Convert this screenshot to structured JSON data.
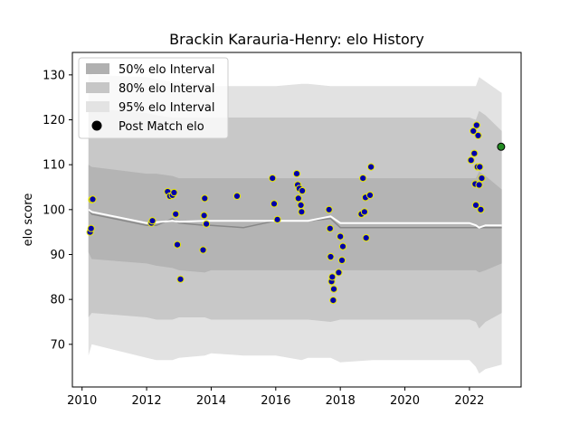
{
  "chart_data": {
    "type": "line",
    "title": "Brackin Karauria-Henry: elo History",
    "xlabel": "",
    "ylabel": "elo score",
    "xlim": [
      2009.7,
      2023.6
    ],
    "ylim": [
      60.5,
      135
    ],
    "xticks": [
      "2010",
      "2012",
      "2014",
      "2016",
      "2018",
      "2020",
      "2022"
    ],
    "yticks": [
      "70",
      "80",
      "90",
      "100",
      "110",
      "120",
      "130"
    ],
    "legend": {
      "placement": "top-left",
      "items": [
        {
          "label": "50% elo Interval",
          "color": "#b0b0b0"
        },
        {
          "label": "80% elo Interval",
          "color": "#c6c6c6"
        },
        {
          "label": "95% elo Interval",
          "color": "#e3e3e3"
        },
        {
          "label": "Post Match elo",
          "color": "#000000"
        }
      ]
    },
    "colors": {
      "band95": "#e2e2e2",
      "band80": "#c8c8c8",
      "band50": "#b4b4b4",
      "mean_line": "#ffffff",
      "median_line": "#888888",
      "point_fill": "#0000aa",
      "point_edge": "#e8e800",
      "final_point": "#228b22"
    },
    "bands": {
      "x": [
        2010.2,
        2010.3,
        2012.0,
        2012.3,
        2012.8,
        2013.0,
        2013.8,
        2014.0,
        2015.0,
        2016.0,
        2016.8,
        2017.0,
        2017.7,
        2018.0,
        2019.0,
        2020.0,
        2022.0,
        2022.2,
        2022.3,
        2022.5,
        2023.0
      ],
      "p95_lo": [
        67.5,
        70.0,
        67.0,
        66.5,
        66.5,
        67.0,
        67.5,
        68.0,
        67.5,
        67.5,
        66.5,
        67.0,
        67.0,
        66.0,
        66.5,
        66.5,
        66.5,
        65.0,
        63.5,
        64.5,
        65.5
      ],
      "p95_hi": [
        132.0,
        130.0,
        129.5,
        129.0,
        128.5,
        128.5,
        128.0,
        127.5,
        127.5,
        127.5,
        128.0,
        128.0,
        127.5,
        127.5,
        127.5,
        127.5,
        127.5,
        127.5,
        129.5,
        128.5,
        126.0
      ],
      "p80_lo": [
        76.0,
        77.0,
        76.0,
        75.5,
        75.5,
        76.0,
        76.0,
        75.5,
        75.5,
        75.5,
        75.5,
        75.5,
        75.0,
        75.5,
        75.5,
        75.5,
        75.5,
        75.0,
        73.5,
        75.0,
        77.0
      ],
      "p80_hi": [
        124.0,
        122.5,
        121.5,
        121.0,
        120.5,
        120.5,
        120.5,
        120.5,
        120.5,
        120.5,
        120.5,
        120.5,
        120.5,
        120.5,
        120.5,
        120.5,
        120.5,
        120.0,
        122.0,
        121.0,
        117.5
      ],
      "p50_lo": [
        90.5,
        89.0,
        88.0,
        87.5,
        87.0,
        86.5,
        86.0,
        86.5,
        86.5,
        86.5,
        86.5,
        86.5,
        86.5,
        86.5,
        86.5,
        86.5,
        86.5,
        86.5,
        86.0,
        86.5,
        88.0
      ],
      "p50_hi": [
        110.0,
        109.5,
        108.0,
        108.0,
        107.5,
        107.0,
        107.0,
        107.0,
        107.0,
        107.0,
        107.0,
        107.0,
        107.0,
        107.0,
        107.0,
        107.0,
        107.0,
        107.0,
        108.5,
        107.5,
        104.5
      ],
      "mean": [
        100.0,
        99.5,
        97.0,
        97.2,
        97.5,
        97.3,
        97.5,
        97.5,
        97.5,
        97.5,
        97.5,
        97.5,
        98.5,
        97.0,
        97.0,
        97.0,
        97.0,
        96.5,
        96.0,
        96.5,
        96.5
      ],
      "median": [
        100.0,
        99.0,
        96.5,
        96.5,
        98.0,
        97.0,
        96.5,
        96.5,
        96.0,
        97.5,
        97.5,
        97.5,
        98.0,
        96.0,
        96.0,
        96.0,
        96.0,
        96.0,
        96.0,
        96.0,
        96.0
      ]
    },
    "points": [
      {
        "x": 2010.25,
        "y": 95.0
      },
      {
        "x": 2010.28,
        "y": 95.8
      },
      {
        "x": 2010.3,
        "y": 102.2
      },
      {
        "x": 2010.33,
        "y": 102.3
      },
      {
        "x": 2012.15,
        "y": 97.0
      },
      {
        "x": 2012.18,
        "y": 97.5
      },
      {
        "x": 2012.65,
        "y": 104.0
      },
      {
        "x": 2012.72,
        "y": 103.0
      },
      {
        "x": 2012.8,
        "y": 103.2
      },
      {
        "x": 2012.85,
        "y": 103.8
      },
      {
        "x": 2012.9,
        "y": 99.0
      },
      {
        "x": 2012.95,
        "y": 92.2
      },
      {
        "x": 2013.05,
        "y": 84.5
      },
      {
        "x": 2013.75,
        "y": 91.0
      },
      {
        "x": 2013.78,
        "y": 98.7
      },
      {
        "x": 2013.8,
        "y": 102.5
      },
      {
        "x": 2013.85,
        "y": 96.8
      },
      {
        "x": 2014.8,
        "y": 103.0
      },
      {
        "x": 2015.9,
        "y": 107.0
      },
      {
        "x": 2015.95,
        "y": 101.3
      },
      {
        "x": 2016.05,
        "y": 97.8
      },
      {
        "x": 2016.65,
        "y": 108.0
      },
      {
        "x": 2016.68,
        "y": 105.5
      },
      {
        "x": 2016.7,
        "y": 102.5
      },
      {
        "x": 2016.73,
        "y": 104.7
      },
      {
        "x": 2016.78,
        "y": 101.0
      },
      {
        "x": 2016.8,
        "y": 99.5
      },
      {
        "x": 2016.82,
        "y": 104.2
      },
      {
        "x": 2017.65,
        "y": 100.0
      },
      {
        "x": 2017.68,
        "y": 95.8
      },
      {
        "x": 2017.7,
        "y": 89.5
      },
      {
        "x": 2017.73,
        "y": 84.0
      },
      {
        "x": 2017.75,
        "y": 85.0
      },
      {
        "x": 2017.78,
        "y": 79.8
      },
      {
        "x": 2017.8,
        "y": 82.3
      },
      {
        "x": 2017.95,
        "y": 86.0
      },
      {
        "x": 2018.0,
        "y": 94.0
      },
      {
        "x": 2018.05,
        "y": 88.7
      },
      {
        "x": 2018.08,
        "y": 91.8
      },
      {
        "x": 2018.65,
        "y": 99.0
      },
      {
        "x": 2018.7,
        "y": 107.0
      },
      {
        "x": 2018.75,
        "y": 99.5
      },
      {
        "x": 2018.78,
        "y": 102.7
      },
      {
        "x": 2018.8,
        "y": 93.7
      },
      {
        "x": 2018.92,
        "y": 103.2
      },
      {
        "x": 2018.95,
        "y": 109.5
      },
      {
        "x": 2022.05,
        "y": 111.0
      },
      {
        "x": 2022.12,
        "y": 117.5
      },
      {
        "x": 2022.15,
        "y": 112.5
      },
      {
        "x": 2022.18,
        "y": 105.7
      },
      {
        "x": 2022.2,
        "y": 101.0
      },
      {
        "x": 2022.22,
        "y": 118.8
      },
      {
        "x": 2022.25,
        "y": 109.5
      },
      {
        "x": 2022.27,
        "y": 116.5
      },
      {
        "x": 2022.3,
        "y": 105.5
      },
      {
        "x": 2022.32,
        "y": 109.5
      },
      {
        "x": 2022.35,
        "y": 100.0
      },
      {
        "x": 2022.38,
        "y": 107.0
      },
      {
        "x": 2022.98,
        "y": 114.0,
        "final": true
      }
    ]
  }
}
